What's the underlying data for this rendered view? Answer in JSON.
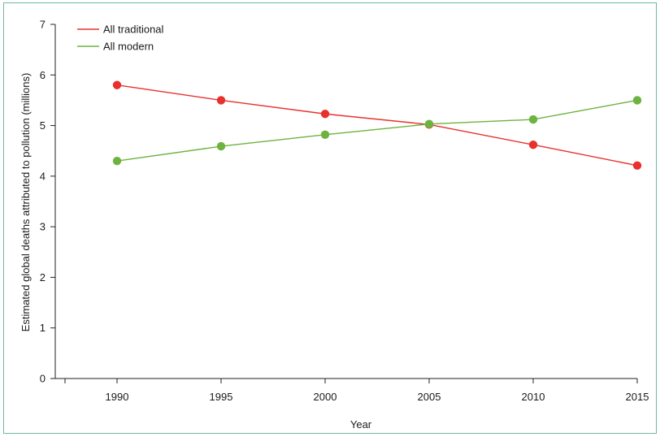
{
  "chart_data": {
    "type": "line",
    "xlabel": "Year",
    "ylabel": "Estimated global deaths attributed to pollution (millions)",
    "ylim": [
      0,
      7
    ],
    "yticks": [
      "0",
      "1",
      "2",
      "3",
      "4",
      "5",
      "6",
      "7"
    ],
    "categories": [
      "1990",
      "1995",
      "2000",
      "2005",
      "2010",
      "2015"
    ],
    "grid": false,
    "legend_position": "top-left",
    "series": [
      {
        "name": "All traditional",
        "color": "#e8312d",
        "line_color": "#e8312d",
        "values": [
          5.8,
          5.5,
          5.23,
          5.02,
          4.62,
          4.21
        ]
      },
      {
        "name": "All modern",
        "color": "#6db33f",
        "line_color": "#6db33f",
        "values": [
          4.3,
          4.59,
          4.82,
          5.03,
          5.12,
          5.5
        ]
      }
    ]
  }
}
